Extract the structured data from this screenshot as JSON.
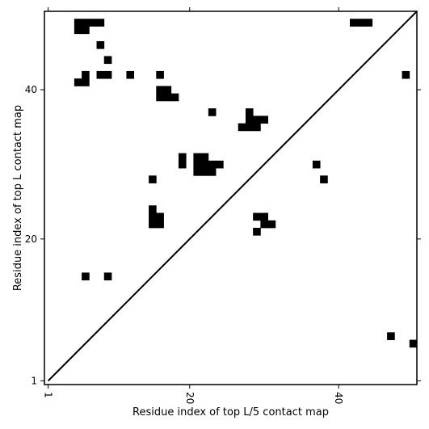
{
  "chart_data": {
    "type": "heatmap",
    "title": "",
    "xlabel": "Residue index of top L/5 contact map",
    "ylabel": "Residue index of top L contact map",
    "xlim": [
      0.5,
      50.5
    ],
    "ylim": [
      0.5,
      50.5
    ],
    "xticks": [
      1,
      20,
      40
    ],
    "yticks": [
      1,
      20,
      40
    ],
    "x_tick_labels": [
      "1",
      "20",
      "40"
    ],
    "y_tick_labels": [
      "1",
      "20",
      "40"
    ],
    "x_tick_rotation": "vertical",
    "diagonal_line": true,
    "grid": false,
    "legend": "none",
    "colors": {
      "cell": "#000000",
      "background": "#ffffff",
      "axes": "#000000"
    },
    "cells": [
      [
        5,
        49
      ],
      [
        6,
        49
      ],
      [
        7,
        49
      ],
      [
        8,
        49
      ],
      [
        5,
        48
      ],
      [
        6,
        48
      ],
      [
        8,
        46
      ],
      [
        9,
        44
      ],
      [
        6,
        42
      ],
      [
        8,
        42
      ],
      [
        9,
        42
      ],
      [
        12,
        42
      ],
      [
        16,
        42
      ],
      [
        5,
        41
      ],
      [
        6,
        41
      ],
      [
        16,
        40
      ],
      [
        17,
        40
      ],
      [
        16,
        39
      ],
      [
        17,
        39
      ],
      [
        18,
        39
      ],
      [
        23,
        37
      ],
      [
        28,
        37
      ],
      [
        28,
        36
      ],
      [
        29,
        36
      ],
      [
        30,
        36
      ],
      [
        27,
        35
      ],
      [
        28,
        35
      ],
      [
        29,
        35
      ],
      [
        19,
        31
      ],
      [
        21,
        31
      ],
      [
        22,
        31
      ],
      [
        19,
        30
      ],
      [
        21,
        30
      ],
      [
        22,
        30
      ],
      [
        23,
        30
      ],
      [
        24,
        30
      ],
      [
        21,
        29
      ],
      [
        22,
        29
      ],
      [
        23,
        29
      ],
      [
        15,
        28
      ],
      [
        15,
        24
      ],
      [
        15,
        23
      ],
      [
        16,
        23
      ],
      [
        15,
        22
      ],
      [
        16,
        22
      ],
      [
        29,
        23
      ],
      [
        30,
        23
      ],
      [
        30,
        22
      ],
      [
        31,
        22
      ],
      [
        29,
        21
      ],
      [
        6,
        15
      ],
      [
        9,
        15
      ],
      [
        42,
        49
      ],
      [
        43,
        49
      ],
      [
        44,
        49
      ],
      [
        49,
        42
      ],
      [
        37,
        30
      ],
      [
        38,
        28
      ],
      [
        47,
        7
      ],
      [
        50,
        6
      ]
    ]
  }
}
